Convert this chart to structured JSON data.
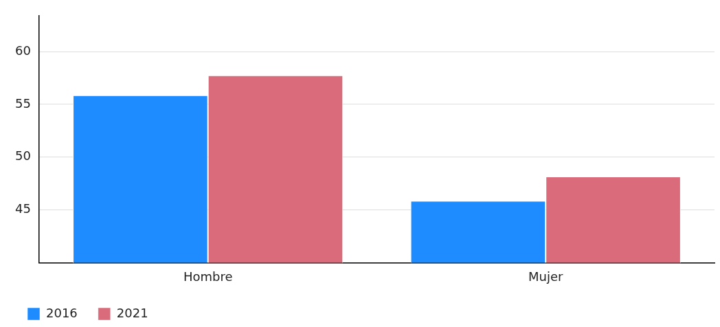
{
  "chart_data": {
    "type": "bar",
    "categories": [
      "Hombre",
      "Mujer"
    ],
    "series": [
      {
        "name": "2016",
        "color": "#1e8cff",
        "values": [
          55.8,
          45.8
        ]
      },
      {
        "name": "2021",
        "color": "#da6b7a",
        "values": [
          57.7,
          48.1
        ]
      }
    ],
    "ylim": [
      40,
      63.4
    ],
    "yticks": [
      45,
      50,
      55,
      60
    ],
    "grid": "y",
    "legend": "bottom left"
  }
}
